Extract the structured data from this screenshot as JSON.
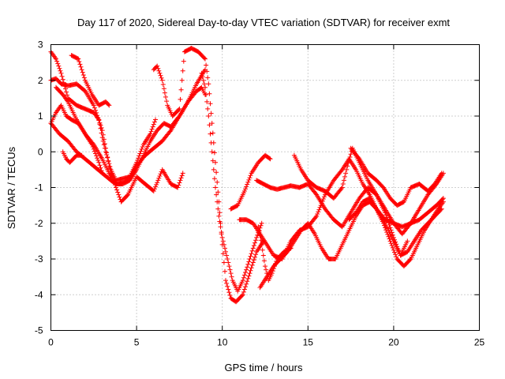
{
  "chart_data": {
    "type": "scatter",
    "title": "Day 117 of 2020, Sidereal Day-to-day VTEC variation (SDTVAR) for receiver exmt",
    "xlabel": "GPS time / hours",
    "ylabel": "SDTVAR / TECUs",
    "xlim": [
      0,
      25
    ],
    "ylim": [
      -5,
      3
    ],
    "xticks": [
      0,
      5,
      10,
      15,
      20,
      25
    ],
    "yticks": [
      -5,
      -4,
      -3,
      -2,
      -1,
      0,
      1,
      2,
      3
    ],
    "grid": true,
    "marker": "plus",
    "color": "#ff0000",
    "series": [
      {
        "x": [
          0.0,
          0.3,
          0.6,
          1.0,
          1.5,
          2.0,
          2.5,
          3.0,
          3.4,
          3.8,
          4.1,
          4.5,
          5.0,
          5.5,
          6.0,
          6.5,
          7.0,
          7.4,
          7.7
        ],
        "y": [
          2.0,
          2.05,
          1.9,
          1.85,
          1.9,
          1.7,
          1.3,
          0.6,
          -0.4,
          -1.0,
          -1.4,
          -1.2,
          -0.7,
          -0.9,
          -1.1,
          -0.5,
          -0.9,
          -1.0,
          -0.6
        ]
      },
      {
        "x": [
          0.0,
          0.3,
          0.6,
          1.0,
          1.5,
          2.0,
          2.5,
          2.8,
          3.0,
          3.2,
          3.5,
          3.8,
          4.2,
          4.6,
          5.0,
          5.4,
          5.8,
          6.1
        ],
        "y": [
          2.8,
          2.6,
          2.2,
          1.5,
          1.3,
          1.2,
          1.1,
          0.9,
          0.4,
          0.0,
          -0.5,
          -0.8,
          -0.75,
          -0.7,
          -0.3,
          0.2,
          0.5,
          0.9
        ]
      },
      {
        "x": [
          0.0,
          0.3,
          0.6,
          0.9,
          1.2,
          1.6,
          2.0,
          2.4,
          2.8,
          3.0
        ],
        "y": [
          0.8,
          1.1,
          1.3,
          1.0,
          0.9,
          0.8,
          0.5,
          0.2,
          -0.3,
          -0.6
        ]
      },
      {
        "x": [
          0.0,
          0.5,
          1.0,
          1.5,
          2.0,
          2.5,
          3.0,
          3.5,
          3.8,
          4.0,
          4.5,
          5.0,
          5.5,
          6.0,
          6.5,
          7.0,
          7.5,
          8.0,
          8.5,
          8.8,
          9.0
        ],
        "y": [
          0.8,
          0.5,
          0.3,
          0.0,
          -0.2,
          -0.4,
          -0.6,
          -0.8,
          -0.9,
          -0.9,
          -0.8,
          -0.4,
          -0.1,
          0.1,
          0.3,
          0.6,
          1.0,
          1.4,
          1.7,
          1.8,
          1.6
        ]
      },
      {
        "x": [
          0.3,
          0.7,
          1.0,
          1.5,
          2.0,
          2.5,
          3.0,
          3.4,
          3.8,
          4.2,
          4.6,
          5.0,
          5.4,
          5.8,
          6.2,
          6.6,
          7.0,
          7.5,
          8.0,
          8.5,
          9.0
        ],
        "y": [
          1.8,
          1.6,
          1.4,
          0.9,
          0.5,
          0.2,
          -0.2,
          -0.6,
          -0.9,
          -0.9,
          -0.8,
          -0.5,
          -0.1,
          0.3,
          0.6,
          0.8,
          0.7,
          1.0,
          1.4,
          1.9,
          2.3
        ]
      },
      {
        "x": [
          0.7,
          0.9,
          1.1,
          1.3,
          1.5,
          1.8
        ],
        "y": [
          0.0,
          -0.2,
          -0.3,
          -0.2,
          -0.1,
          -0.1
        ]
      },
      {
        "x": [
          1.2,
          1.6,
          2.0,
          2.4,
          2.8,
          3.2,
          3.4
        ],
        "y": [
          2.7,
          2.6,
          2.0,
          1.6,
          1.3,
          1.4,
          1.3
        ]
      },
      {
        "x": [
          6.0,
          6.2,
          6.5,
          6.8,
          7.1,
          7.5,
          7.8,
          8.2,
          8.6,
          9.0,
          9.2,
          9.4,
          9.6,
          9.8,
          10.0,
          10.2,
          10.5,
          10.8,
          11.2,
          11.6,
          12.0,
          12.4
        ],
        "y": [
          2.3,
          2.4,
          2.0,
          1.3,
          1.0,
          1.2,
          2.8,
          2.9,
          2.8,
          2.6,
          1.9,
          0.8,
          -0.3,
          -1.4,
          -2.6,
          -3.6,
          -4.1,
          -4.2,
          -4.0,
          -3.4,
          -2.8,
          -2.5
        ]
      },
      {
        "x": [
          8.8,
          9.0,
          9.2,
          9.4,
          9.6,
          9.8,
          10.0,
          10.3,
          10.6,
          10.9,
          11.2,
          11.6,
          12.0,
          12.3
        ],
        "y": [
          2.2,
          1.8,
          1.0,
          0.0,
          -1.0,
          -1.8,
          -2.4,
          -3.0,
          -3.6,
          -3.9,
          -3.6,
          -3.0,
          -2.4,
          -2.0
        ]
      },
      {
        "x": [
          10.5,
          10.9,
          11.3,
          11.7,
          12.1,
          12.5,
          12.8
        ],
        "y": [
          -1.6,
          -1.5,
          -1.1,
          -0.6,
          -0.3,
          -0.1,
          -0.2
        ]
      },
      {
        "x": [
          11.0,
          11.4,
          11.8,
          12.2,
          12.6,
          13.0,
          13.5,
          14.0,
          14.5,
          15.0,
          15.5,
          16.0,
          16.5,
          17.0,
          17.4,
          17.8,
          18.2,
          18.6,
          19.0,
          19.5,
          20.0,
          20.5,
          21.0,
          21.5,
          22.0,
          22.5,
          22.9
        ],
        "y": [
          -1.9,
          -1.9,
          -2.0,
          -2.3,
          -2.6,
          -2.9,
          -3.0,
          -2.5,
          -2.2,
          -2.1,
          -1.8,
          -1.2,
          -0.8,
          -0.5,
          -0.2,
          -0.5,
          -0.9,
          -1.2,
          -1.6,
          -1.9,
          -2.0,
          -2.1,
          -2.0,
          -1.9,
          -1.7,
          -1.5,
          -1.3
        ]
      },
      {
        "x": [
          12.0,
          12.4,
          12.8,
          13.2,
          13.6,
          14.0,
          14.5,
          15.0,
          15.5,
          16.0,
          16.5,
          17.0,
          17.5,
          18.0,
          18.5,
          19.0,
          19.5,
          20.0,
          20.5,
          21.0,
          21.5,
          22.0,
          22.5,
          22.9
        ],
        "y": [
          -0.8,
          -0.9,
          -1.0,
          -1.05,
          -1.0,
          -0.95,
          -1.0,
          -0.9,
          -1.2,
          -1.6,
          -1.9,
          -2.1,
          -1.7,
          -1.3,
          -1.0,
          -1.2,
          -1.6,
          -2.0,
          -2.3,
          -2.0,
          -1.6,
          -1.2,
          -0.9,
          -0.6
        ]
      },
      {
        "x": [
          12.2,
          12.6,
          13.0,
          13.4,
          13.8,
          14.2,
          14.6,
          15.0,
          15.4,
          15.8,
          16.2,
          16.6,
          17.0,
          17.4,
          17.8,
          18.2,
          18.6,
          19.0,
          19.4,
          19.8,
          20.2,
          20.6,
          21.0,
          21.4,
          21.8,
          22.2,
          22.6,
          22.9
        ],
        "y": [
          -3.8,
          -3.5,
          -3.2,
          -3.0,
          -2.8,
          -2.5,
          -2.2,
          -2.0,
          -2.3,
          -2.7,
          -3.0,
          -3.0,
          -2.6,
          -2.2,
          -1.8,
          -1.5,
          -1.4,
          -1.6,
          -2.0,
          -2.5,
          -3.0,
          -3.2,
          -3.0,
          -2.6,
          -2.2,
          -1.9,
          -1.6,
          -1.4
        ]
      },
      {
        "x": [
          12.1,
          12.3,
          12.5,
          12.7,
          12.9,
          13.2,
          13.6,
          14.0
        ],
        "y": [
          -2.1,
          -2.6,
          -3.2,
          -3.6,
          -3.4,
          -3.0,
          -2.8,
          -2.7
        ]
      },
      {
        "x": [
          14.2,
          14.6,
          15.0,
          15.5,
          16.0,
          16.5,
          17.0,
          17.3,
          17.6,
          18.0,
          18.5,
          19.0,
          19.5,
          20.0,
          20.4,
          20.8
        ],
        "y": [
          -0.1,
          -0.5,
          -0.8,
          -1.0,
          -1.1,
          -1.3,
          -1.0,
          -0.4,
          0.1,
          -0.3,
          -0.8,
          -1.2,
          -1.7,
          -2.4,
          -2.9,
          -2.5
        ]
      },
      {
        "x": [
          17.5,
          18.0,
          18.5,
          19.0,
          19.4,
          19.8,
          20.2,
          20.6,
          21.0,
          21.5,
          22.0,
          22.4,
          22.8
        ],
        "y": [
          0.1,
          -0.2,
          -0.6,
          -0.8,
          -1.0,
          -1.3,
          -1.5,
          -1.4,
          -1.0,
          -0.9,
          -1.1,
          -0.9,
          -0.6
        ]
      },
      {
        "x": [
          17.4,
          17.8,
          18.2,
          18.6,
          19.0,
          19.5,
          20.0,
          20.4,
          20.8,
          21.2,
          21.6,
          22.0,
          22.4,
          22.8
        ],
        "y": [
          -1.9,
          -1.7,
          -1.4,
          -1.3,
          -1.6,
          -2.0,
          -2.5,
          -2.9,
          -2.8,
          -2.5,
          -2.2,
          -2.0,
          -1.8,
          -1.6
        ]
      }
    ]
  }
}
